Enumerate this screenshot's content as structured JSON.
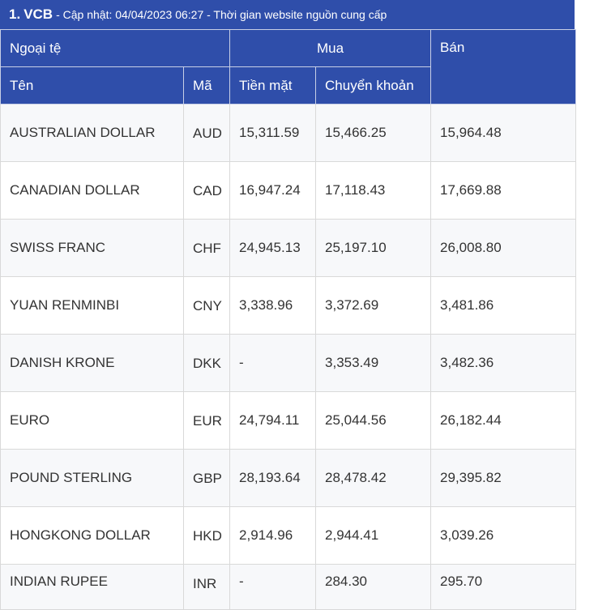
{
  "header": {
    "index": "1.",
    "bank": "VCB",
    "subtitle": "- Cập nhật: 04/04/2023 06:27 - Thời gian website nguồn cung cấp"
  },
  "table": {
    "group_headers": {
      "currency": "Ngoại tệ",
      "buy": "Mua",
      "sell": "Bán"
    },
    "columns": {
      "name": "Tên",
      "code": "Mã",
      "cash": "Tiền mặt",
      "transfer": "Chuyển khoản"
    },
    "rows": [
      {
        "name": "AUSTRALIAN DOLLAR",
        "code": "AUD",
        "cash": "15,311.59",
        "transfer": "15,466.25",
        "sell": "15,964.48"
      },
      {
        "name": "CANADIAN DOLLAR",
        "code": "CAD",
        "cash": "16,947.24",
        "transfer": "17,118.43",
        "sell": "17,669.88"
      },
      {
        "name": "SWISS FRANC",
        "code": "CHF",
        "cash": "24,945.13",
        "transfer": "25,197.10",
        "sell": "26,008.80"
      },
      {
        "name": "YUAN RENMINBI",
        "code": "CNY",
        "cash": "3,338.96",
        "transfer": "3,372.69",
        "sell": "3,481.86"
      },
      {
        "name": "DANISH KRONE",
        "code": "DKK",
        "cash": "-",
        "transfer": "3,353.49",
        "sell": "3,482.36"
      },
      {
        "name": "EURO",
        "code": "EUR",
        "cash": "24,794.11",
        "transfer": "25,044.56",
        "sell": "26,182.44"
      },
      {
        "name": "POUND STERLING",
        "code": "GBP",
        "cash": "28,193.64",
        "transfer": "28,478.42",
        "sell": "29,395.82"
      },
      {
        "name": "HONGKONG DOLLAR",
        "code": "HKD",
        "cash": "2,914.96",
        "transfer": "2,944.41",
        "sell": "3,039.26"
      },
      {
        "name": "INDIAN RUPEE",
        "code": "INR",
        "cash": "-",
        "transfer": "284.30",
        "sell": "295.70"
      }
    ]
  }
}
